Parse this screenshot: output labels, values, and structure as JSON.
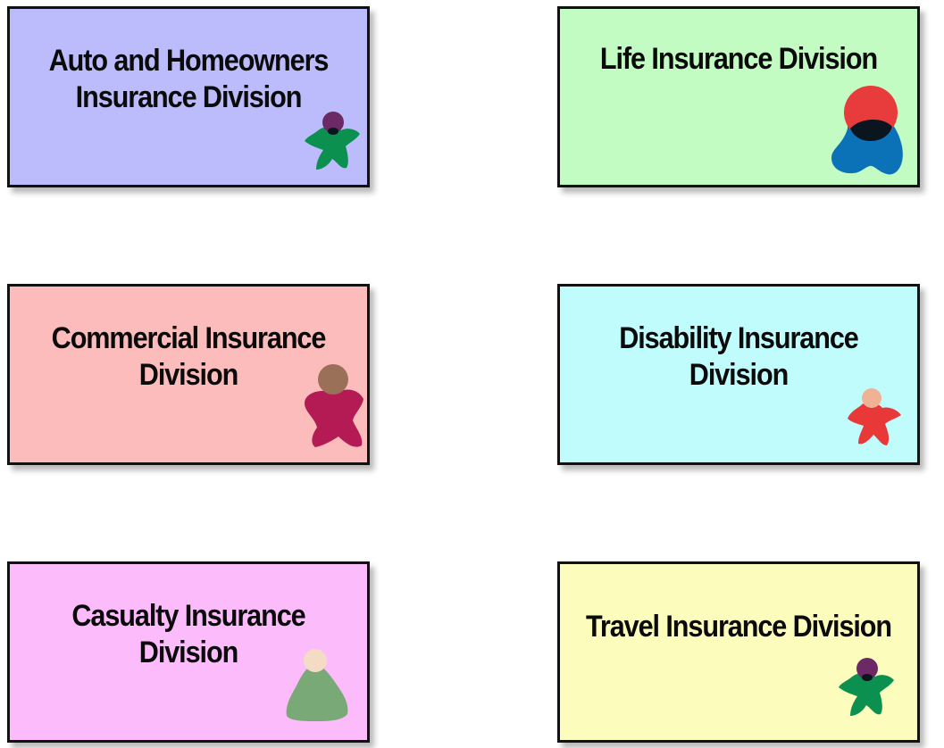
{
  "divisions": [
    {
      "title": "Auto and Homeowners Insurance Division",
      "fill": "#bcbcfc",
      "figure": "star-person-icon",
      "colors": {
        "head": "#6b2a66",
        "body": "#0c9050"
      }
    },
    {
      "title": "Life Insurance Division",
      "fill": "#c2fcc2",
      "figure": "blob-person-icon",
      "colors": {
        "head": "#e83c3c",
        "body": "#0c72b8",
        "overlap": "#0b1520"
      }
    },
    {
      "title": "Commercial Insurance Division",
      "fill": "#fcbcbc",
      "figure": "broad-person-icon",
      "colors": {
        "head": "#9b7059",
        "body": "#b41b55"
      }
    },
    {
      "title": "Disability Insurance Division",
      "fill": "#c0fcfc",
      "figure": "star-person-icon",
      "colors": {
        "head": "#f0b294",
        "body": "#e83838"
      }
    },
    {
      "title": "Casualty Insurance Division",
      "fill": "#fcbcfc",
      "figure": "cone-person-icon",
      "colors": {
        "head": "#f4dcc4",
        "body": "#7aa978"
      }
    },
    {
      "title": "Travel Insurance Division",
      "fill": "#fcfcbc",
      "figure": "star-person-icon",
      "colors": {
        "head": "#6b2a66",
        "body": "#0c9050"
      }
    }
  ]
}
